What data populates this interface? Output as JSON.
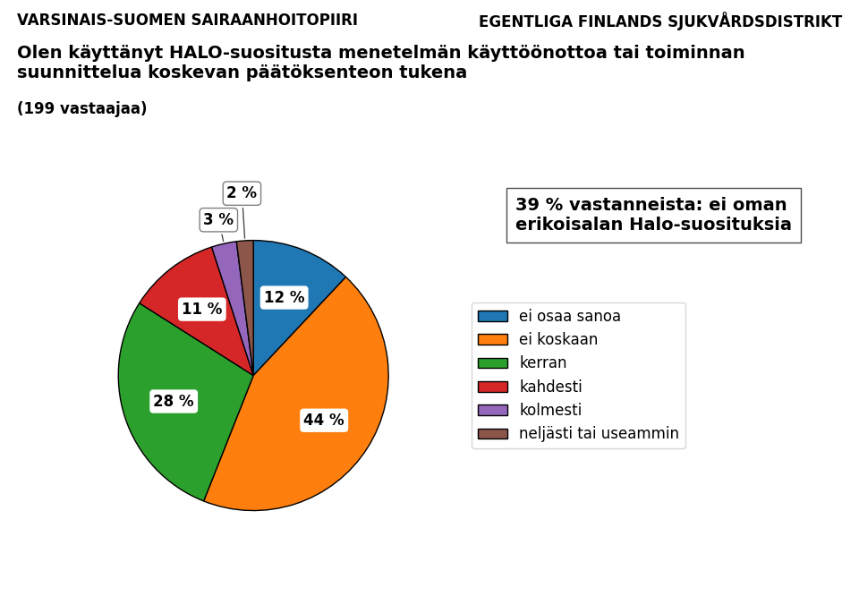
{
  "chart_data": {
    "type": "pie",
    "title": "Olen käyttänyt HALO-suositusta menetelmän käyttöönottoa tai toiminnan suunnittelua koskevan päätöksenteon tukena",
    "subtitle": "(199 vastaajaa)",
    "annotations": [
      "VARSINAIS-SUOMEN SAIRAANHOITOPIIRI",
      "EGENTLIGA FINLANDS SJUKVÅRDSDISTRIKT",
      "39 % vastanneista: ei oman erikoisalan Halo-suosituksia"
    ],
    "categories": [
      "ei osaa sanoa",
      "ei koskaan",
      "kerran",
      "kahdesti",
      "kolmesti",
      "neljästi tai useammin"
    ],
    "values": [
      12,
      44,
      28,
      11,
      3,
      2
    ],
    "value_labels": [
      "12 %",
      "44 %",
      "28 %",
      "11 %",
      "3 %",
      "2 %"
    ],
    "data_labels": true,
    "legend": "center left"
  }
}
